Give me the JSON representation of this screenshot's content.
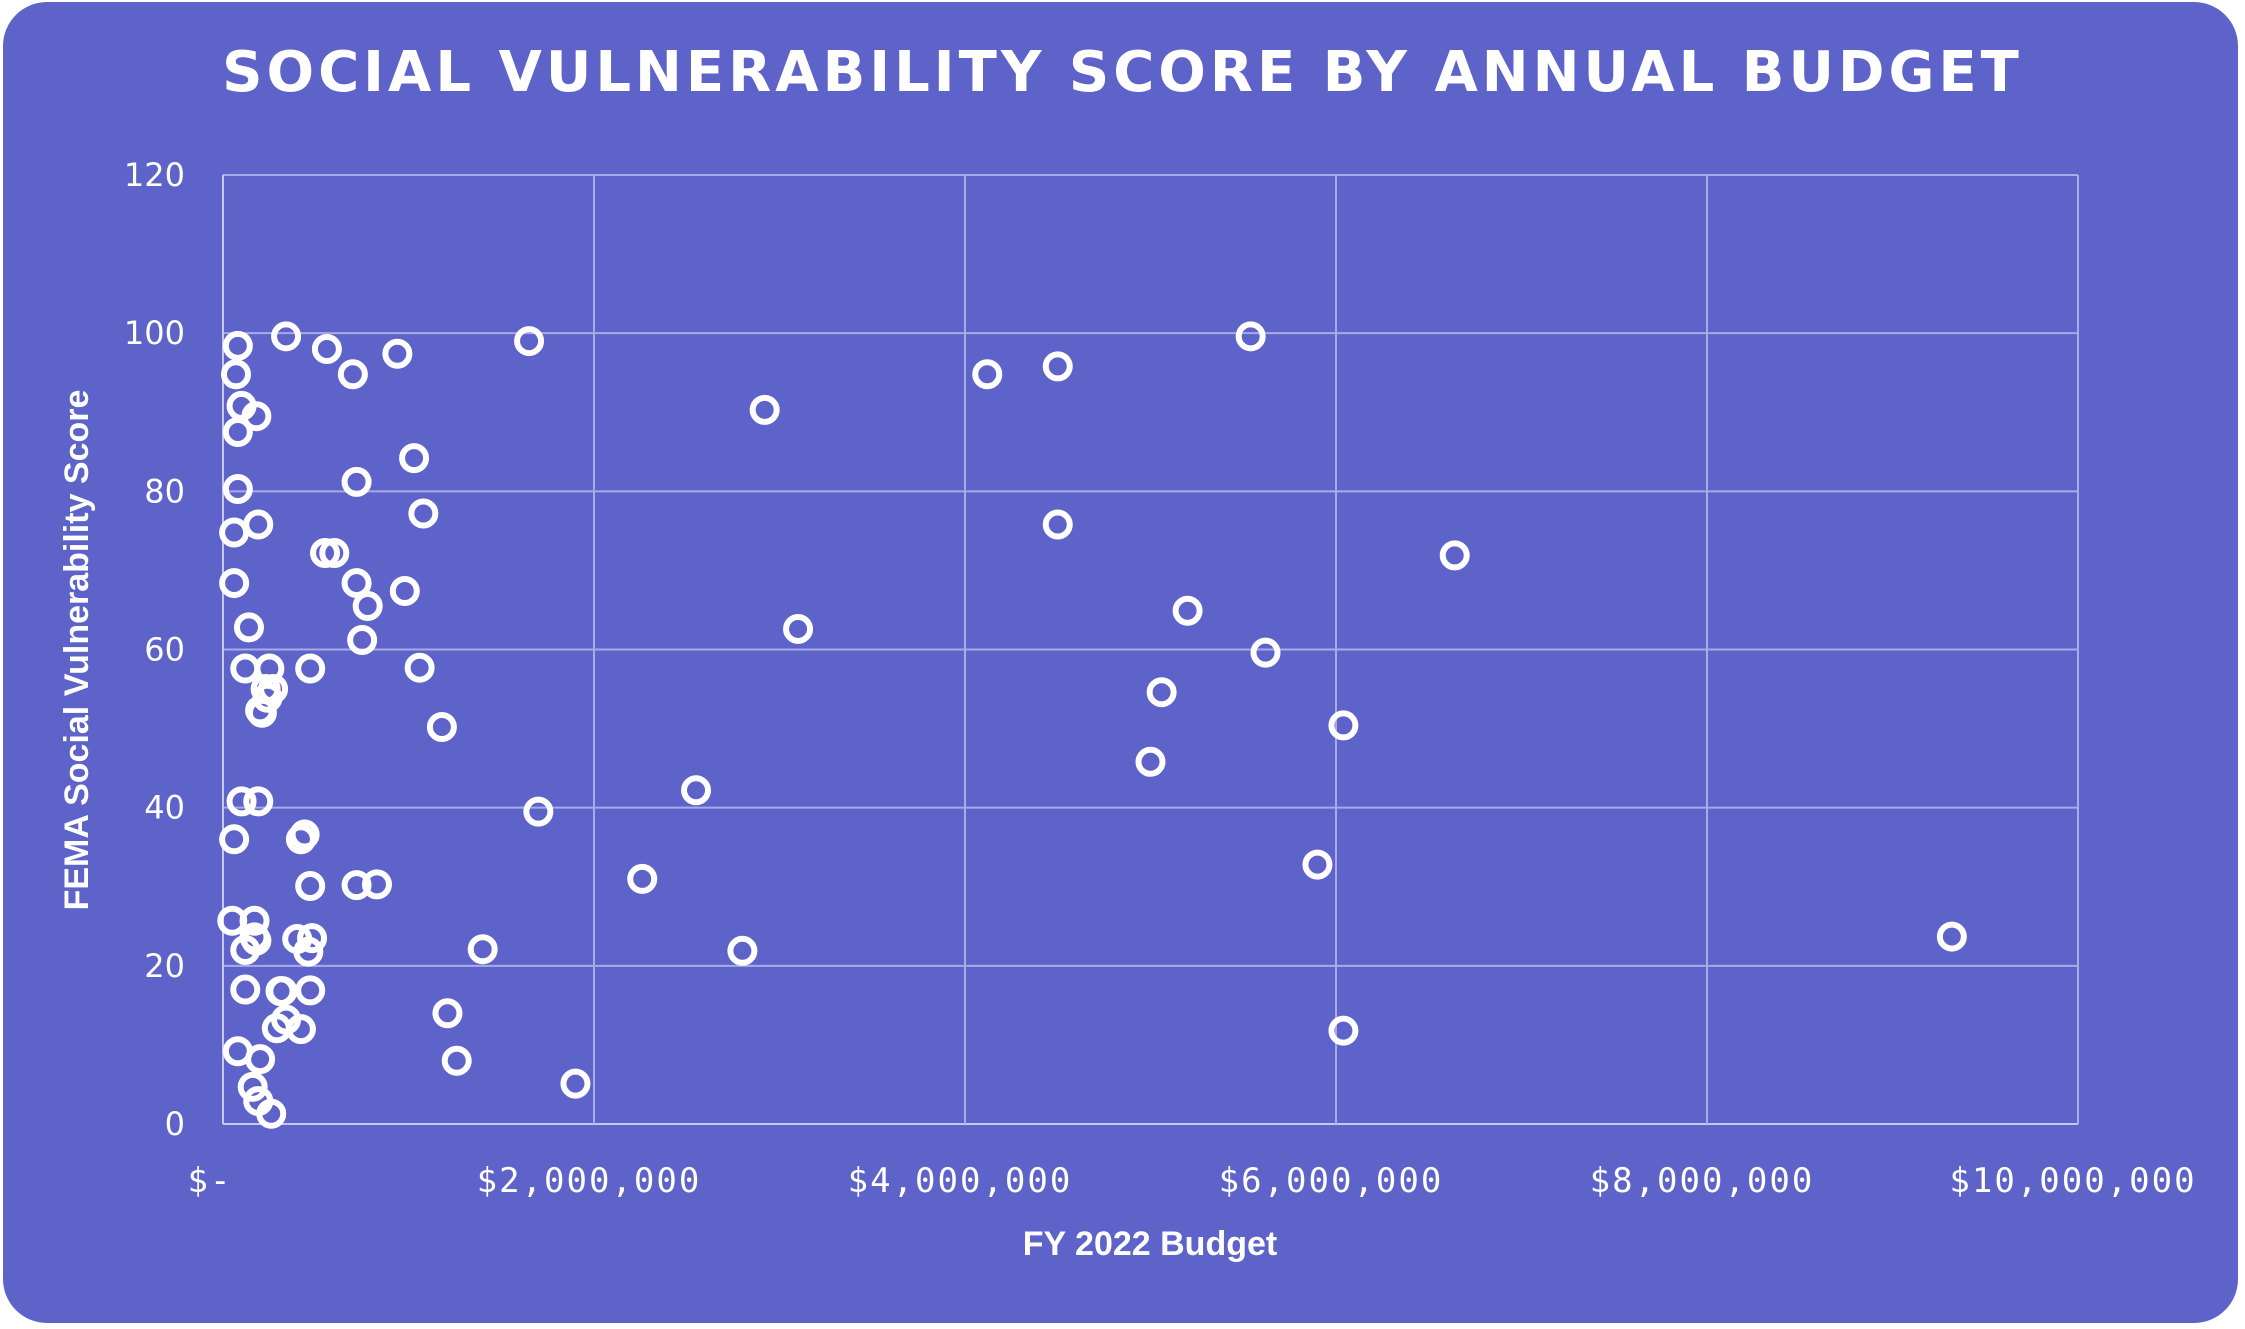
{
  "chart_data": {
    "type": "scatter",
    "title": "SOCIAL VULNERABILITY SCORE BY ANNUAL BUDGET",
    "xlabel": "FY 2022 Budget",
    "ylabel": "FEMA Social Vulnerability Score",
    "xlim": [
      0,
      10000000
    ],
    "ylim": [
      0,
      120
    ],
    "x_ticks": [
      0,
      2000000,
      4000000,
      6000000,
      8000000,
      10000000
    ],
    "x_tick_labels": [
      "$-",
      "$2,000,000",
      "$4,000,000",
      "$6,000,000",
      "$8,000,000",
      "$10,000,000"
    ],
    "y_ticks": [
      0,
      20,
      40,
      60,
      80,
      100,
      120
    ],
    "y_tick_labels": [
      "0",
      "20",
      "40",
      "60",
      "80",
      "100",
      "120"
    ],
    "grid": true,
    "marker": "hollow-circle",
    "colors": {
      "background": "#5d63c9",
      "marker": "#ffffff",
      "grid": "#a7abe6",
      "text": "#ffffff"
    },
    "x": [
      70000,
      80000,
      100000,
      80000,
      80000,
      60000,
      60000,
      140000,
      120000,
      100000,
      60000,
      180000,
      340000,
      560000,
      700000,
      940000,
      1650000,
      550000,
      720000,
      980000,
      1080000,
      780000,
      1030000,
      1060000,
      750000,
      720000,
      600000,
      190000,
      230000,
      240000,
      200000,
      210000,
      250000,
      270000,
      190000,
      170000,
      170000,
      420000,
      470000,
      440000,
      400000,
      480000,
      470000,
      830000,
      1180000,
      1700000,
      720000,
      320000,
      120000,
      50000,
      80000,
      200000,
      160000,
      190000,
      310000,
      470000,
      340000,
      290000,
      420000,
      460000,
      1210000,
      1260000,
      1400000,
      180000,
      120000,
      260000,
      1900000,
      2260000,
      2550000,
      2800000,
      2920000,
      3100000,
      4120000,
      4500000,
      4500000,
      5060000,
      5000000,
      5200000,
      5540000,
      5620000,
      5900000,
      6040000,
      6040000,
      6640000,
      9320000
    ],
    "y": [
      94.8,
      87.5,
      90.8,
      98.4,
      80.3,
      74.8,
      68.4,
      62.8,
      57.6,
      40.8,
      36.0,
      89.5,
      99.6,
      98.0,
      94.8,
      97.4,
      99.0,
      72.2,
      81.2,
      67.4,
      77.2,
      65.5,
      84.2,
      57.7,
      61.2,
      68.4,
      72.2,
      75.8,
      55.0,
      53.9,
      52.3,
      52.0,
      57.6,
      55.0,
      40.8,
      25.7,
      23.6,
      36.0,
      57.6,
      36.6,
      23.4,
      23.5,
      30.1,
      30.3,
      50.2,
      39.5,
      30.2,
      16.8,
      17.0,
      25.7,
      9.2,
      8.2,
      4.7,
      2.9,
      16.8,
      16.9,
      13.2,
      12.1,
      12.0,
      21.8,
      14.0,
      8.0,
      22.1,
      23.2,
      22.0,
      1.3,
      5.1,
      31.0,
      42.2,
      21.9,
      90.3,
      62.6,
      94.8,
      75.8,
      95.8,
      54.6,
      45.8,
      64.9,
      99.6,
      59.6,
      32.8,
      11.8,
      50.4,
      71.9,
      23.7
    ]
  }
}
